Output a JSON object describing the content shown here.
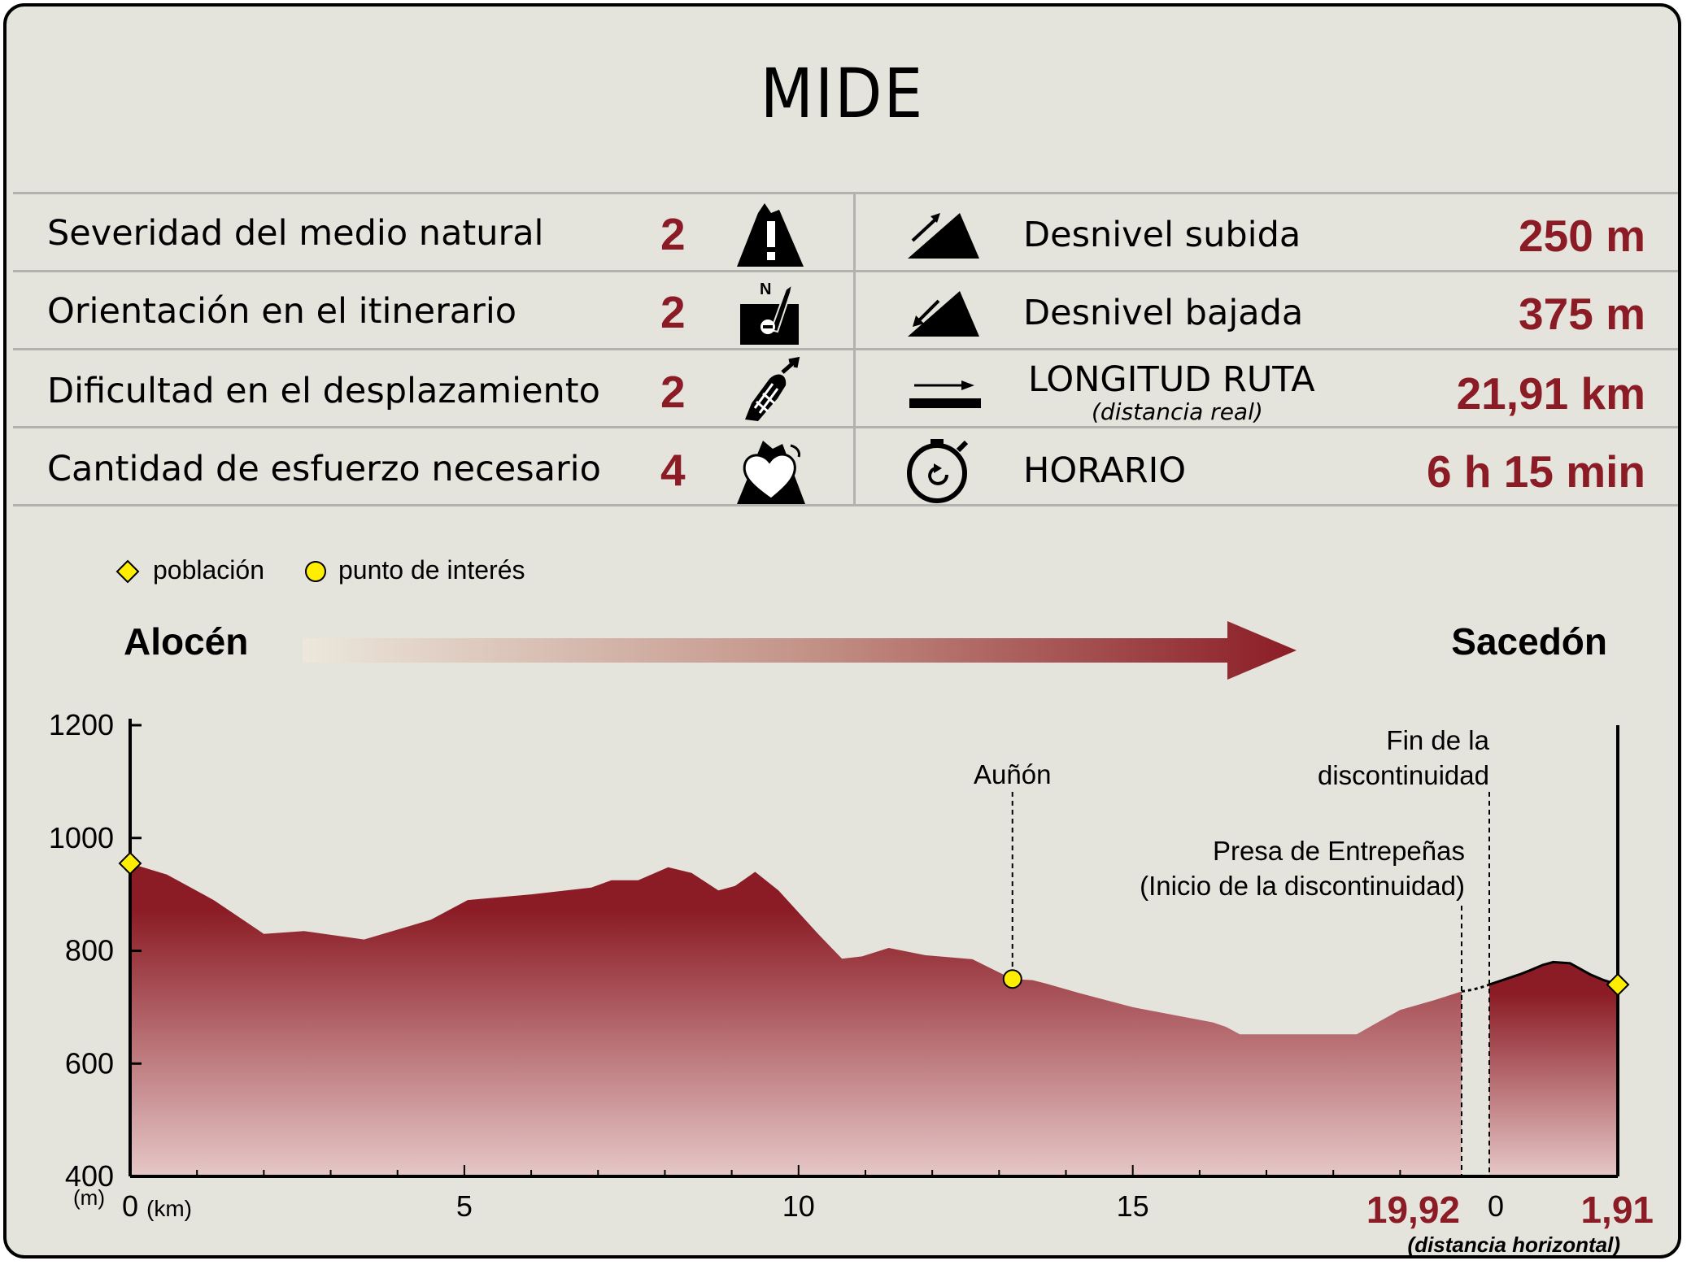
{
  "title": "MIDE",
  "mide": {
    "left": [
      {
        "label": "Severidad del medio natural",
        "value": "2",
        "icon": "mountain-warning-icon"
      },
      {
        "label": "Orientación en el itinerario",
        "value": "2",
        "icon": "compass-map-icon"
      },
      {
        "label": "Dificultad en el desplazamiento",
        "value": "2",
        "icon": "footprint-icon"
      },
      {
        "label": "Cantidad de esfuerzo necesario",
        "value": "4",
        "icon": "heart-mountain-icon"
      }
    ],
    "right": [
      {
        "label": "Desnivel subida",
        "value": "250 m",
        "icon": "ascent-icon"
      },
      {
        "label": "Desnivel bajada",
        "value": "375 m",
        "icon": "descent-icon"
      },
      {
        "label": "LONGITUD RUTA",
        "sublabel": "(distancia real)",
        "value": "21,91 km",
        "icon": "length-arrow-icon"
      },
      {
        "label": "HORARIO",
        "value": "6 h 15 min",
        "icon": "stopwatch-icon"
      }
    ]
  },
  "legend": {
    "town": "población",
    "poi": "punto de interés"
  },
  "route": {
    "start": "Alocén",
    "end": "Sacedón"
  },
  "chart_data": {
    "type": "area",
    "y_unit": "(m)",
    "x_unit": "(km)",
    "ylim": [
      400,
      1200
    ],
    "yticks": [
      "1200",
      "1000",
      "800",
      "600",
      "400"
    ],
    "ytick_values": [
      1200,
      1000,
      800,
      600,
      400
    ],
    "xticks_main": [
      "0",
      "5",
      "10",
      "15"
    ],
    "xtick_main_values": [
      0,
      5,
      10,
      15
    ],
    "segment1_end_label": "19,92",
    "segment2_start_label": "0",
    "segment2_end_label": "1,91",
    "x_note": "(distancia horizontal)",
    "segment1_xlim": [
      0,
      19.92
    ],
    "segment2_xlim": [
      0,
      1.91
    ],
    "segment1": {
      "x": [
        0,
        0.55,
        1.25,
        2.0,
        2.6,
        3.5,
        4.5,
        5.05,
        6.0,
        6.9,
        7.2,
        7.6,
        8.05,
        8.4,
        8.8,
        9.05,
        9.35,
        9.7,
        10.3,
        10.65,
        10.95,
        11.35,
        11.9,
        12.6,
        13.2,
        13.5,
        13.7,
        14.2,
        15.0,
        16.2,
        16.4,
        16.6,
        17.5,
        18.0,
        18.35,
        18.65,
        19.0,
        19.5,
        19.92
      ],
      "y": [
        955,
        935,
        890,
        830,
        835,
        820,
        855,
        890,
        900,
        912,
        925,
        925,
        948,
        938,
        907,
        915,
        940,
        907,
        829,
        786,
        790,
        805,
        792,
        785,
        750,
        748,
        742,
        725,
        700,
        673,
        665,
        652,
        652,
        652,
        652,
        672,
        695,
        712,
        728
      ]
    },
    "gap_y": [
      728,
      740
    ],
    "segment2": {
      "x": [
        0,
        0.2,
        0.45,
        0.6,
        0.8,
        0.95,
        1.2,
        1.5,
        1.7,
        1.91
      ],
      "y": [
        740,
        748,
        758,
        765,
        775,
        780,
        778,
        758,
        748,
        740
      ]
    },
    "points": [
      {
        "kind": "town",
        "segment": 1,
        "x": 0,
        "y": 955,
        "label": ""
      },
      {
        "kind": "poi",
        "segment": 1,
        "x": 13.2,
        "y": 750,
        "label": "Auñón"
      },
      {
        "kind": "town",
        "segment": 2,
        "x": 1.91,
        "y": 740,
        "label": ""
      }
    ],
    "annotations": [
      {
        "line1": "Presa de Entrepeñas",
        "line2": "(Inicio de la discontinuidad)"
      },
      {
        "line1": "Fin de la",
        "line2": "discontinuidad"
      }
    ],
    "colors": {
      "fill_top": "#8b1c25",
      "fill_bottom": "#e6c7c7",
      "value_text": "#8b1c25",
      "town_marker": "#ffee00",
      "poi_marker": "#ffee00"
    }
  }
}
